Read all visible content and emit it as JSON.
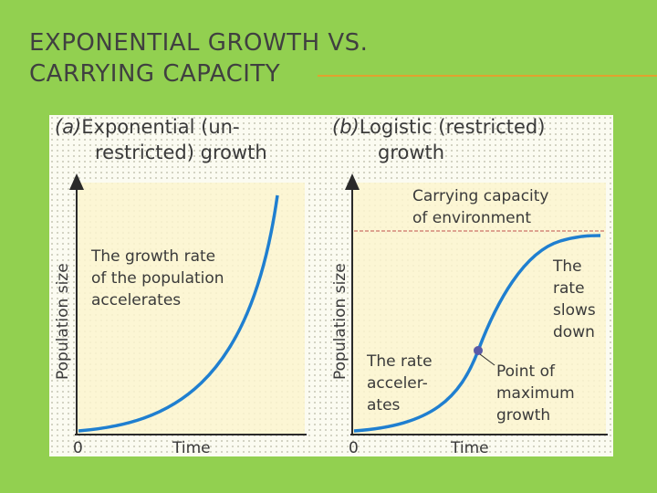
{
  "slide": {
    "title_line1": "EXPONENTIAL GROWTH VS.",
    "title_line2": "CARRYING CAPACITY"
  },
  "colors": {
    "background": "#92d050",
    "title_text": "#404040",
    "title_rule": "#e0a22e",
    "plot_fill": "#fbf4cf",
    "curve": "#1f7fd0",
    "capacity_line": "#c0504d",
    "point": "#5a5aa8"
  },
  "panel_a": {
    "heading_tag": "(a)",
    "heading_line1": "Exponential (un-",
    "heading_line2": "restricted) growth",
    "y_axis_label": "Population size",
    "x_axis_label": "Time",
    "origin_label": "0",
    "annotation_lines": [
      "The growth rate",
      "of the population",
      "accelerates"
    ]
  },
  "panel_b": {
    "heading_tag": "(b)",
    "heading_line1": "Logistic (restricted)",
    "heading_line2": "growth",
    "y_axis_label": "Population size",
    "x_axis_label": "Time",
    "origin_label": "0",
    "capacity_lines": [
      "Carrying capacity",
      "of environment"
    ],
    "slows_lines": [
      "The",
      "rate",
      "slows",
      "down"
    ],
    "accel_lines": [
      "The rate",
      "acceler-",
      "ates"
    ],
    "point_lines": [
      "Point of",
      "maximum",
      "growth"
    ]
  }
}
